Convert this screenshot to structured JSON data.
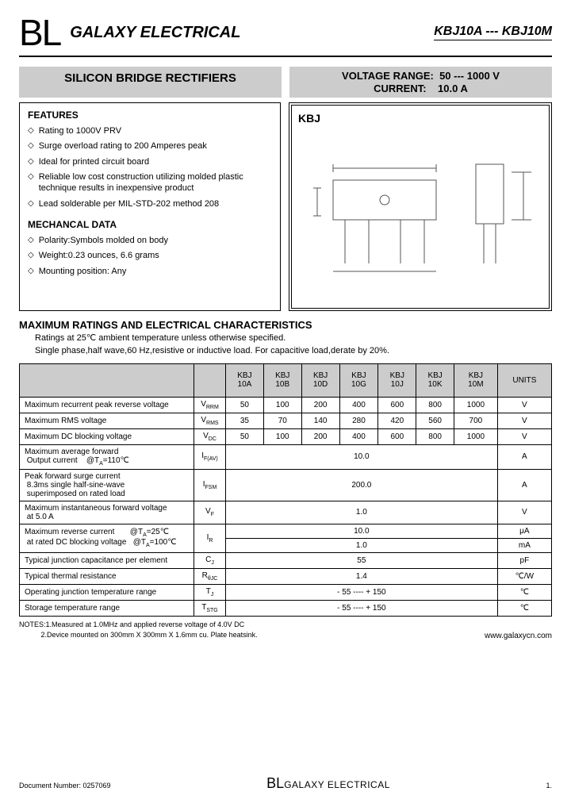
{
  "header": {
    "logo": "BL",
    "company": "GALAXY ELECTRICAL",
    "partno": "KBJ10A --- KBJ10M"
  },
  "subheader": {
    "title": "SILICON BRIDGE RECTIFIERS",
    "voltage_label": "VOLTAGE  RANGE:",
    "voltage_value": "50 --- 1000 V",
    "current_label": "CURRENT:",
    "current_value": "10.0 A"
  },
  "features": {
    "heading": "FEATURES",
    "items": [
      "Rating to 1000V PRV",
      "Surge overload rating to 200 Amperes peak",
      "Ideal for printed circuit board",
      "Reliable low cost construction utilizing molded plastic technique results in inexpensive product",
      "Lead solderable per MIL-STD-202 method 208"
    ]
  },
  "mechanical": {
    "heading": "MECHANCAL DATA",
    "items": [
      "Polarity:Symbols molded on body",
      "Weight:0.23 ounces, 6.6 grams",
      "Mounting position: Any"
    ]
  },
  "diagram": {
    "label": "KBJ"
  },
  "maxratings": {
    "title": "MAXIMUM RATINGS AND ELECTRICAL CHARACTERISTICS",
    "sub1": "Ratings at 25℃ ambient temperature unless otherwise specified.",
    "sub2": "Single phase,half wave,60 Hz,resistive or inductive load. For capacitive load,derate by 20%."
  },
  "table": {
    "headers": [
      "",
      "",
      "KBJ 10A",
      "KBJ 10B",
      "KBJ 10D",
      "KBJ 10G",
      "KBJ 10J",
      "KBJ 10K",
      "KBJ 10M",
      "UNITS"
    ],
    "rows": [
      {
        "param": "Maximum recurrent peak reverse voltage",
        "sym": "V<sub>RRM</sub>",
        "vals": [
          "50",
          "100",
          "200",
          "400",
          "600",
          "800",
          "1000"
        ],
        "unit": "V"
      },
      {
        "param": "Maximum RMS voltage",
        "sym": "V<sub>RMS</sub>",
        "vals": [
          "35",
          "70",
          "140",
          "280",
          "420",
          "560",
          "700"
        ],
        "unit": "V"
      },
      {
        "param": "Maximum DC blocking voltage",
        "sym": "V<sub>DC</sub>",
        "vals": [
          "50",
          "100",
          "200",
          "400",
          "600",
          "800",
          "1000"
        ],
        "unit": "V"
      },
      {
        "param": "Maximum average forward<br>&nbsp;Output current &nbsp;&nbsp;&nbsp;@T<sub>A</sub>=110℃",
        "sym": "I<sub>F(AV)</sub>",
        "span": "10.0",
        "unit": "A"
      },
      {
        "param": "Peak forward surge current<br>&nbsp;8.3ms single half-sine-wave<br>&nbsp;superimposed on rated load",
        "sym": "I<sub>FSM</sub>",
        "span": "200.0",
        "unit": "A"
      },
      {
        "param": "Maximum instantaneous forward voltage<br>&nbsp;at 5.0 A",
        "sym": "V<sub>F</sub>",
        "span": "1.0",
        "unit": "V"
      },
      {
        "param": "Maximum reverse current &nbsp;&nbsp;&nbsp;&nbsp;&nbsp;&nbsp;@T<sub>A</sub>=25℃<br>&nbsp;at rated DC blocking  voltage &nbsp;&nbsp;@T<sub>A</sub>=100℃",
        "sym": "I<sub>R</sub>",
        "dual": [
          "10.0",
          "1.0"
        ],
        "units": [
          "μA",
          "mA"
        ]
      },
      {
        "param": "Typical junction capacitance per element",
        "sym": "C<sub>J</sub>",
        "span": "55",
        "unit": "pF"
      },
      {
        "param": "Typical thermal resistance",
        "sym": "R<sub>θJC</sub>",
        "span": "1.4",
        "unit": "℃/W"
      },
      {
        "param": "Operating junction temperature range",
        "sym": "T<sub>J</sub>",
        "span": "- 55 ---- + 150",
        "unit": "℃"
      },
      {
        "param": "Storage temperature range",
        "sym": "T<sub>STG</sub>",
        "span": "- 55 ---- + 150",
        "unit": "℃"
      }
    ]
  },
  "notes": {
    "line1": "NOTES:1.Measured at 1.0MHz and applied reverse voltage of 4.0V DC",
    "line2": "2.Device mounted on 300mm X 300mm X 1.6mm cu. Plate heatsink."
  },
  "url": "www.galaxycn.com",
  "footer": {
    "docnum": "Document  Number: 0257069",
    "logo_bl": "BL",
    "logo_ge": "GALAXY ELECTRICAL",
    "page": "1."
  }
}
